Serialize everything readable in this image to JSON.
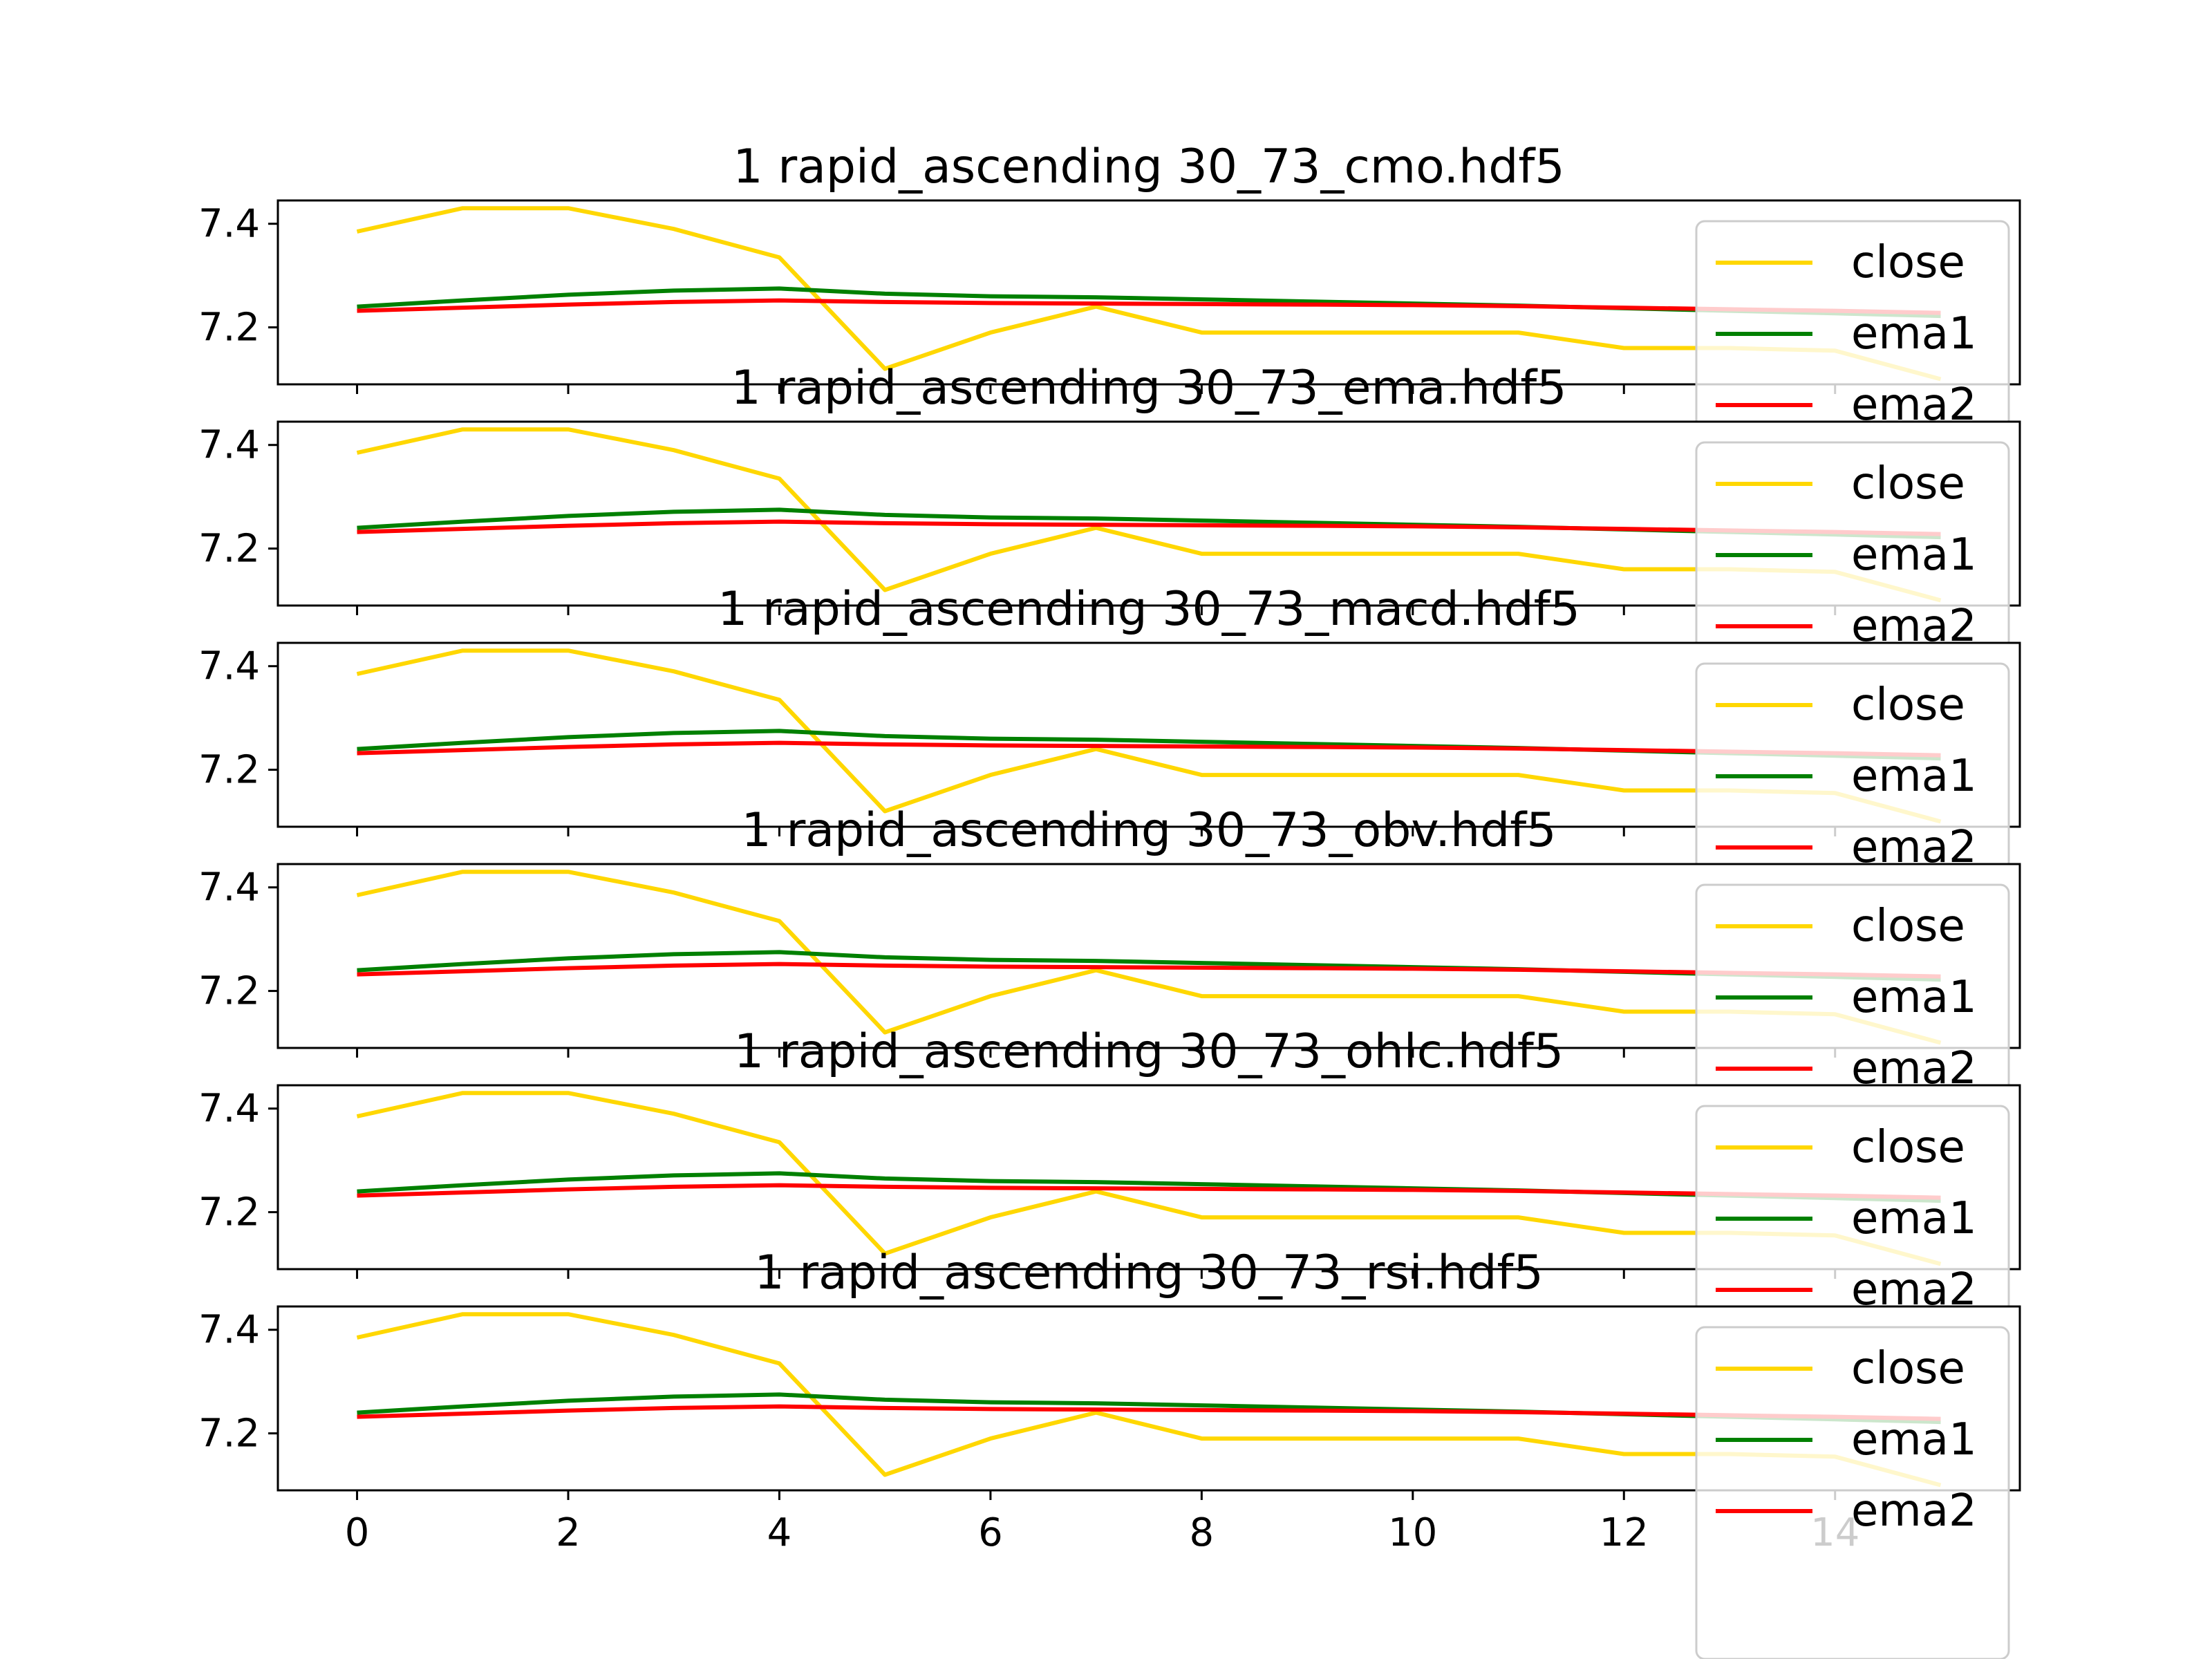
{
  "figure": {
    "background": "#ffffff"
  },
  "chart_data": [
    {
      "type": "line",
      "title": "1 rapid_ascending 30_73_cmo.hdf5",
      "x": [
        0,
        1,
        2,
        3,
        4,
        5,
        6,
        7,
        8,
        9,
        10,
        11,
        12,
        13,
        14,
        15
      ],
      "xlim": [
        -0.75,
        15.75
      ],
      "ylim": [
        7.09,
        7.445
      ],
      "yticks": [
        "7.2",
        "7.4"
      ],
      "xticks": [
        "0",
        "2",
        "4",
        "6",
        "8",
        "10",
        "12",
        "14"
      ],
      "series": [
        {
          "name": "close",
          "color": "#ffd700",
          "values": [
            7.385,
            7.43,
            7.43,
            7.39,
            7.335,
            7.12,
            7.19,
            7.24,
            7.19,
            7.19,
            7.19,
            7.19,
            7.16,
            7.16,
            7.155,
            7.1
          ]
        },
        {
          "name": "ema1",
          "color": "#008000",
          "values": [
            7.24,
            7.252,
            7.263,
            7.271,
            7.275,
            7.265,
            7.26,
            7.258,
            7.254,
            7.25,
            7.246,
            7.242,
            7.237,
            7.232,
            7.227,
            7.222
          ]
        },
        {
          "name": "ema2",
          "color": "#ff0000",
          "values": [
            7.232,
            7.238,
            7.244,
            7.249,
            7.252,
            7.249,
            7.247,
            7.246,
            7.245,
            7.244,
            7.243,
            7.241,
            7.238,
            7.235,
            7.232,
            7.228
          ]
        }
      ],
      "legend_position": "lower-right"
    },
    {
      "type": "line",
      "title": "1 rapid_ascending 30_73_ema.hdf5",
      "x": [
        0,
        1,
        2,
        3,
        4,
        5,
        6,
        7,
        8,
        9,
        10,
        11,
        12,
        13,
        14,
        15
      ],
      "xlim": [
        -0.75,
        15.75
      ],
      "ylim": [
        7.09,
        7.445
      ],
      "yticks": [
        "7.2",
        "7.4"
      ],
      "xticks": [
        "0",
        "2",
        "4",
        "6",
        "8",
        "10",
        "12",
        "14"
      ],
      "series": [
        {
          "name": "close",
          "color": "#ffd700",
          "values": [
            7.385,
            7.43,
            7.43,
            7.39,
            7.335,
            7.12,
            7.19,
            7.24,
            7.19,
            7.19,
            7.19,
            7.19,
            7.16,
            7.16,
            7.155,
            7.1
          ]
        },
        {
          "name": "ema1",
          "color": "#008000",
          "values": [
            7.24,
            7.252,
            7.263,
            7.271,
            7.275,
            7.265,
            7.26,
            7.258,
            7.254,
            7.25,
            7.246,
            7.242,
            7.237,
            7.232,
            7.227,
            7.222
          ]
        },
        {
          "name": "ema2",
          "color": "#ff0000",
          "values": [
            7.232,
            7.238,
            7.244,
            7.249,
            7.252,
            7.249,
            7.247,
            7.246,
            7.245,
            7.244,
            7.243,
            7.241,
            7.238,
            7.235,
            7.232,
            7.228
          ]
        }
      ],
      "legend_position": "lower-right"
    },
    {
      "type": "line",
      "title": "1 rapid_ascending 30_73_macd.hdf5",
      "x": [
        0,
        1,
        2,
        3,
        4,
        5,
        6,
        7,
        8,
        9,
        10,
        11,
        12,
        13,
        14,
        15
      ],
      "xlim": [
        -0.75,
        15.75
      ],
      "ylim": [
        7.09,
        7.445
      ],
      "yticks": [
        "7.2",
        "7.4"
      ],
      "xticks": [
        "0",
        "2",
        "4",
        "6",
        "8",
        "10",
        "12",
        "14"
      ],
      "series": [
        {
          "name": "close",
          "color": "#ffd700",
          "values": [
            7.385,
            7.43,
            7.43,
            7.39,
            7.335,
            7.12,
            7.19,
            7.24,
            7.19,
            7.19,
            7.19,
            7.19,
            7.16,
            7.16,
            7.155,
            7.1
          ]
        },
        {
          "name": "ema1",
          "color": "#008000",
          "values": [
            7.24,
            7.252,
            7.263,
            7.271,
            7.275,
            7.265,
            7.26,
            7.258,
            7.254,
            7.25,
            7.246,
            7.242,
            7.237,
            7.232,
            7.227,
            7.222
          ]
        },
        {
          "name": "ema2",
          "color": "#ff0000",
          "values": [
            7.232,
            7.238,
            7.244,
            7.249,
            7.252,
            7.249,
            7.247,
            7.246,
            7.245,
            7.244,
            7.243,
            7.241,
            7.238,
            7.235,
            7.232,
            7.228
          ]
        }
      ],
      "legend_position": "lower-right"
    },
    {
      "type": "line",
      "title": "1 rapid_ascending 30_73_obv.hdf5",
      "x": [
        0,
        1,
        2,
        3,
        4,
        5,
        6,
        7,
        8,
        9,
        10,
        11,
        12,
        13,
        14,
        15
      ],
      "xlim": [
        -0.75,
        15.75
      ],
      "ylim": [
        7.09,
        7.445
      ],
      "yticks": [
        "7.2",
        "7.4"
      ],
      "xticks": [
        "0",
        "2",
        "4",
        "6",
        "8",
        "10",
        "12",
        "14"
      ],
      "series": [
        {
          "name": "close",
          "color": "#ffd700",
          "values": [
            7.385,
            7.43,
            7.43,
            7.39,
            7.335,
            7.12,
            7.19,
            7.24,
            7.19,
            7.19,
            7.19,
            7.19,
            7.16,
            7.16,
            7.155,
            7.1
          ]
        },
        {
          "name": "ema1",
          "color": "#008000",
          "values": [
            7.24,
            7.252,
            7.263,
            7.271,
            7.275,
            7.265,
            7.26,
            7.258,
            7.254,
            7.25,
            7.246,
            7.242,
            7.237,
            7.232,
            7.227,
            7.222
          ]
        },
        {
          "name": "ema2",
          "color": "#ff0000",
          "values": [
            7.232,
            7.238,
            7.244,
            7.249,
            7.252,
            7.249,
            7.247,
            7.246,
            7.245,
            7.244,
            7.243,
            7.241,
            7.238,
            7.235,
            7.232,
            7.228
          ]
        }
      ],
      "legend_position": "lower-right"
    },
    {
      "type": "line",
      "title": "1 rapid_ascending 30_73_ohlc.hdf5",
      "x": [
        0,
        1,
        2,
        3,
        4,
        5,
        6,
        7,
        8,
        9,
        10,
        11,
        12,
        13,
        14,
        15
      ],
      "xlim": [
        -0.75,
        15.75
      ],
      "ylim": [
        7.09,
        7.445
      ],
      "yticks": [
        "7.2",
        "7.4"
      ],
      "xticks": [
        "0",
        "2",
        "4",
        "6",
        "8",
        "10",
        "12",
        "14"
      ],
      "series": [
        {
          "name": "close",
          "color": "#ffd700",
          "values": [
            7.385,
            7.43,
            7.43,
            7.39,
            7.335,
            7.12,
            7.19,
            7.24,
            7.19,
            7.19,
            7.19,
            7.19,
            7.16,
            7.16,
            7.155,
            7.1
          ]
        },
        {
          "name": "ema1",
          "color": "#008000",
          "values": [
            7.24,
            7.252,
            7.263,
            7.271,
            7.275,
            7.265,
            7.26,
            7.258,
            7.254,
            7.25,
            7.246,
            7.242,
            7.237,
            7.232,
            7.227,
            7.222
          ]
        },
        {
          "name": "ema2",
          "color": "#ff0000",
          "values": [
            7.232,
            7.238,
            7.244,
            7.249,
            7.252,
            7.249,
            7.247,
            7.246,
            7.245,
            7.244,
            7.243,
            7.241,
            7.238,
            7.235,
            7.232,
            7.228
          ]
        }
      ],
      "legend_position": "lower-right"
    },
    {
      "type": "line",
      "title": "1 rapid_ascending 30_73_rsi.hdf5",
      "x": [
        0,
        1,
        2,
        3,
        4,
        5,
        6,
        7,
        8,
        9,
        10,
        11,
        12,
        13,
        14,
        15
      ],
      "xlim": [
        -0.75,
        15.75
      ],
      "ylim": [
        7.09,
        7.445
      ],
      "yticks": [
        "7.2",
        "7.4"
      ],
      "xticks": [
        "0",
        "2",
        "4",
        "6",
        "8",
        "10",
        "12",
        "14"
      ],
      "series": [
        {
          "name": "close",
          "color": "#ffd700",
          "values": [
            7.385,
            7.43,
            7.43,
            7.39,
            7.335,
            7.12,
            7.19,
            7.24,
            7.19,
            7.19,
            7.19,
            7.19,
            7.16,
            7.16,
            7.155,
            7.1
          ]
        },
        {
          "name": "ema1",
          "color": "#008000",
          "values": [
            7.24,
            7.252,
            7.263,
            7.271,
            7.275,
            7.265,
            7.26,
            7.258,
            7.254,
            7.25,
            7.246,
            7.242,
            7.237,
            7.232,
            7.227,
            7.222
          ]
        },
        {
          "name": "ema2",
          "color": "#ff0000",
          "values": [
            7.232,
            7.238,
            7.244,
            7.249,
            7.252,
            7.249,
            7.247,
            7.246,
            7.245,
            7.244,
            7.243,
            7.241,
            7.238,
            7.235,
            7.232,
            7.228
          ]
        }
      ],
      "legend_position": "lower-right"
    }
  ]
}
